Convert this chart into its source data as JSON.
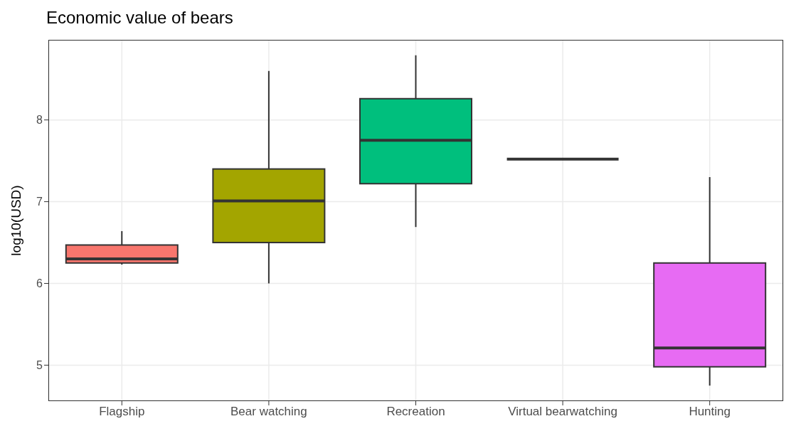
{
  "chart_data": {
    "type": "box",
    "title": "Economic value of bears",
    "ylabel": "log10(USD)",
    "categories": [
      "Flagship",
      "Bear watching",
      "Recreation",
      "Virtual bearwatching",
      "Hunting"
    ],
    "colors": [
      "#f8766d",
      "#a3a500",
      "#00bf7d",
      "#333333",
      "#e76bf3"
    ],
    "boxes": [
      {
        "low": 6.23,
        "q1": 6.25,
        "median": 6.3,
        "q3": 6.47,
        "high": 6.64
      },
      {
        "low": 6.0,
        "q1": 6.5,
        "median": 7.01,
        "q3": 7.4,
        "high": 8.6
      },
      {
        "low": 6.69,
        "q1": 7.22,
        "median": 7.75,
        "q3": 8.26,
        "high": 8.79
      },
      {
        "low": 7.52,
        "q1": 7.52,
        "median": 7.52,
        "q3": 7.52,
        "high": 7.52
      },
      {
        "low": 4.75,
        "q1": 4.98,
        "median": 5.21,
        "q3": 6.25,
        "high": 7.3
      }
    ],
    "ylim": [
      4.56,
      8.98
    ],
    "yticks": [
      5,
      6,
      7,
      8
    ],
    "grid": true
  }
}
